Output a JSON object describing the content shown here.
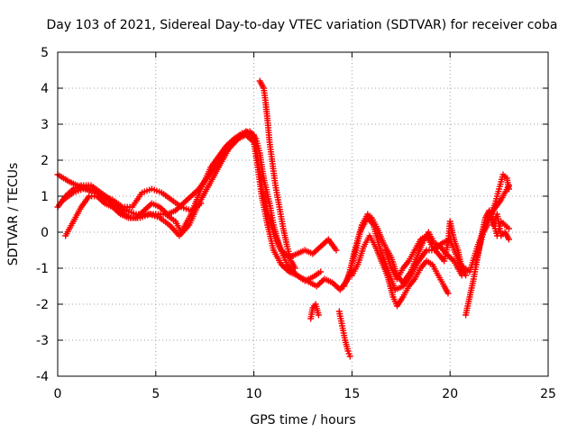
{
  "chart_data": {
    "type": "scatter",
    "title": "Day 103 of 2021, Sidereal Day-to-day VTEC variation (SDTVAR) for receiver coba",
    "xlabel": "GPS time / hours",
    "ylabel": "SDTVAR / TECUs",
    "xlim": [
      0,
      25
    ],
    "ylim": [
      -4,
      5
    ],
    "xticks": [
      "0",
      "5",
      "10",
      "15",
      "20",
      "25"
    ],
    "yticks": [
      "-4",
      "-3",
      "-2",
      "-1",
      "0",
      "1",
      "2",
      "3",
      "4",
      "5"
    ],
    "grid": true,
    "legend": "none",
    "marker": "plus",
    "color": "#ff0000",
    "series": [
      {
        "points": [
          [
            0,
            1.6
          ],
          [
            0.3,
            1.5
          ],
          [
            0.6,
            1.4
          ],
          [
            1.0,
            1.3
          ],
          [
            1.5,
            1.2
          ],
          [
            2.0,
            1.1
          ],
          [
            2.5,
            0.9
          ],
          [
            3.0,
            0.7
          ],
          [
            3.5,
            0.6
          ],
          [
            4.0,
            0.5
          ],
          [
            4.5,
            0.5
          ],
          [
            5.0,
            0.5
          ],
          [
            5.5,
            0.5
          ],
          [
            6.0,
            0.3
          ],
          [
            6.3,
            0.0
          ],
          [
            6.8,
            0.5
          ],
          [
            7.3,
            1.2
          ],
          [
            7.8,
            1.8
          ],
          [
            8.2,
            2.1
          ],
          [
            8.6,
            2.4
          ],
          [
            9.0,
            2.6
          ],
          [
            9.4,
            2.75
          ],
          [
            9.8,
            2.8
          ],
          [
            10.1,
            2.6
          ],
          [
            10.3,
            2.2
          ],
          [
            10.5,
            1.5
          ],
          [
            10.8,
            0.8
          ],
          [
            11.0,
            0.2
          ],
          [
            11.3,
            -0.4
          ],
          [
            11.7,
            -0.9
          ],
          [
            12.2,
            -1.2
          ],
          [
            12.7,
            -1.35
          ],
          [
            13.2,
            -1.5
          ],
          [
            13.6,
            -1.3
          ],
          [
            14.0,
            -1.4
          ],
          [
            14.4,
            -1.6
          ],
          [
            14.8,
            -1.3
          ],
          [
            15.1,
            -0.6
          ],
          [
            15.4,
            0.0
          ],
          [
            15.8,
            0.4
          ],
          [
            16.1,
            0.2
          ],
          [
            16.4,
            -0.4
          ],
          [
            16.8,
            -1.0
          ],
          [
            17.2,
            -1.6
          ],
          [
            17.6,
            -1.5
          ],
          [
            18.0,
            -1.2
          ],
          [
            18.4,
            -0.8
          ],
          [
            18.8,
            -0.5
          ],
          [
            19.2,
            -0.5
          ],
          [
            19.6,
            -0.3
          ],
          [
            20.0,
            -0.2
          ],
          [
            20.5,
            -0.9
          ],
          [
            21.0,
            -1.1
          ],
          [
            21.4,
            -0.4
          ],
          [
            21.8,
            0.2
          ],
          [
            22.2,
            0.6
          ],
          [
            22.6,
            0.9
          ],
          [
            23.0,
            1.3
          ]
        ]
      },
      {
        "points": [
          [
            0,
            0.7
          ],
          [
            0.4,
            1.0
          ],
          [
            0.8,
            1.2
          ],
          [
            1.2,
            1.3
          ],
          [
            1.7,
            1.3
          ],
          [
            2.2,
            1.1
          ],
          [
            2.7,
            0.9
          ],
          [
            3.2,
            0.6
          ],
          [
            3.7,
            0.4
          ],
          [
            4.2,
            0.4
          ],
          [
            4.7,
            0.5
          ],
          [
            5.2,
            0.4
          ],
          [
            5.7,
            0.2
          ],
          [
            6.2,
            -0.1
          ],
          [
            6.7,
            0.2
          ],
          [
            7.2,
            0.8
          ],
          [
            7.7,
            1.3
          ],
          [
            8.2,
            1.8
          ],
          [
            8.7,
            2.3
          ],
          [
            9.2,
            2.6
          ],
          [
            9.6,
            2.8
          ],
          [
            10.0,
            2.7
          ],
          [
            10.2,
            2.0
          ],
          [
            10.4,
            1.2
          ],
          [
            10.7,
            0.6
          ],
          [
            11.0,
            0.0
          ],
          [
            11.4,
            -0.5
          ],
          [
            11.8,
            -0.7
          ],
          [
            12.2,
            -0.6
          ],
          [
            12.6,
            -0.5
          ],
          [
            13.0,
            -0.6
          ],
          [
            13.4,
            -0.4
          ],
          [
            13.8,
            -0.2
          ],
          [
            14.2,
            -0.5
          ]
        ]
      },
      {
        "points": [
          [
            0.4,
            -0.1
          ],
          [
            0.8,
            0.3
          ],
          [
            1.2,
            0.7
          ],
          [
            1.6,
            1.0
          ],
          [
            2.0,
            1.0
          ],
          [
            2.4,
            0.8
          ],
          [
            2.8,
            0.7
          ],
          [
            3.2,
            0.5
          ],
          [
            3.6,
            0.4
          ],
          [
            4.0,
            0.4
          ],
          [
            4.4,
            0.6
          ],
          [
            4.8,
            0.8
          ],
          [
            5.2,
            0.7
          ],
          [
            5.6,
            0.5
          ],
          [
            6.0,
            0.6
          ],
          [
            6.4,
            0.8
          ],
          [
            6.8,
            1.0
          ],
          [
            7.2,
            1.2
          ],
          [
            7.6,
            1.5
          ],
          [
            8.0,
            1.8
          ],
          [
            8.4,
            2.1
          ],
          [
            8.8,
            2.4
          ],
          [
            9.2,
            2.6
          ],
          [
            9.6,
            2.7
          ],
          [
            10.0,
            2.5
          ],
          [
            10.2,
            1.8
          ],
          [
            10.4,
            1.0
          ],
          [
            10.7,
            0.2
          ],
          [
            11.0,
            -0.5
          ],
          [
            11.4,
            -0.9
          ],
          [
            11.8,
            -1.1
          ],
          [
            12.2,
            -1.2
          ],
          [
            12.6,
            -1.35
          ],
          [
            13.0,
            -1.25
          ],
          [
            13.4,
            -1.1
          ]
        ]
      },
      {
        "points": [
          [
            0.3,
            0.9
          ],
          [
            0.8,
            1.1
          ],
          [
            1.3,
            1.2
          ],
          [
            1.8,
            1.15
          ],
          [
            2.3,
            1.0
          ],
          [
            2.8,
            0.9
          ],
          [
            3.3,
            0.7
          ],
          [
            3.8,
            0.7
          ],
          [
            4.3,
            1.1
          ],
          [
            4.8,
            1.2
          ],
          [
            5.3,
            1.1
          ],
          [
            5.8,
            0.9
          ],
          [
            6.3,
            0.7
          ],
          [
            6.8,
            0.6
          ],
          [
            7.3,
            0.8
          ]
        ]
      },
      {
        "points": [
          [
            10.3,
            4.2
          ],
          [
            10.5,
            4.0
          ],
          [
            10.6,
            3.6
          ],
          [
            10.7,
            3.1
          ],
          [
            10.8,
            2.5
          ],
          [
            10.95,
            1.9
          ],
          [
            11.1,
            1.3
          ],
          [
            11.3,
            0.7
          ],
          [
            11.5,
            0.1
          ],
          [
            11.7,
            -0.4
          ],
          [
            11.9,
            -0.8
          ],
          [
            12.1,
            -1.0
          ]
        ]
      },
      {
        "points": [
          [
            12.9,
            -2.4
          ],
          [
            13.0,
            -2.1
          ],
          [
            13.15,
            -2.0
          ],
          [
            13.3,
            -2.3
          ]
        ]
      },
      {
        "points": [
          [
            14.35,
            -2.2
          ],
          [
            14.5,
            -2.6
          ],
          [
            14.65,
            -3.0
          ],
          [
            14.8,
            -3.3
          ],
          [
            14.9,
            -3.45
          ]
        ]
      },
      {
        "points": [
          [
            14.6,
            -1.5
          ],
          [
            14.9,
            -1.1
          ],
          [
            15.2,
            -0.5
          ],
          [
            15.5,
            0.2
          ],
          [
            15.8,
            0.5
          ],
          [
            16.0,
            0.4
          ],
          [
            16.3,
            0.1
          ],
          [
            16.6,
            -0.3
          ],
          [
            17.0,
            -0.7
          ],
          [
            17.3,
            -1.2
          ],
          [
            17.6,
            -1.4
          ],
          [
            18.0,
            -1.1
          ],
          [
            18.3,
            -0.7
          ],
          [
            18.6,
            -0.3
          ],
          [
            18.9,
            0.0
          ],
          [
            19.2,
            -0.3
          ],
          [
            19.5,
            -0.4
          ],
          [
            19.8,
            -0.6
          ],
          [
            20.2,
            -0.8
          ],
          [
            20.6,
            -1.2
          ]
        ]
      },
      {
        "points": [
          [
            15.0,
            -1.2
          ],
          [
            15.3,
            -0.9
          ],
          [
            15.6,
            -0.4
          ],
          [
            15.9,
            -0.1
          ],
          [
            16.2,
            -0.4
          ],
          [
            16.5,
            -0.8
          ],
          [
            16.8,
            -1.2
          ],
          [
            17.1,
            -1.8
          ],
          [
            17.3,
            -2.05
          ],
          [
            17.6,
            -1.8
          ],
          [
            17.9,
            -1.5
          ],
          [
            18.2,
            -1.3
          ],
          [
            18.5,
            -1.0
          ],
          [
            18.8,
            -0.8
          ],
          [
            19.1,
            -0.9
          ],
          [
            19.4,
            -1.2
          ],
          [
            19.7,
            -1.5
          ],
          [
            19.9,
            -1.7
          ]
        ]
      },
      {
        "points": [
          [
            16.7,
            -0.5
          ],
          [
            17.0,
            -1.0
          ],
          [
            17.3,
            -1.3
          ],
          [
            17.6,
            -1.0
          ],
          [
            17.9,
            -0.8
          ],
          [
            18.2,
            -0.5
          ],
          [
            18.5,
            -0.2
          ],
          [
            18.8,
            -0.1
          ],
          [
            19.1,
            -0.4
          ],
          [
            19.4,
            -0.6
          ],
          [
            19.7,
            -0.8
          ],
          [
            19.9,
            -0.3
          ],
          [
            20.0,
            0.3
          ],
          [
            20.2,
            -0.2
          ],
          [
            20.4,
            -0.5
          ],
          [
            20.6,
            -1.0
          ],
          [
            20.8,
            -1.2
          ]
        ]
      },
      {
        "points": [
          [
            20.8,
            -2.3
          ],
          [
            21.0,
            -1.8
          ],
          [
            21.2,
            -1.3
          ],
          [
            21.4,
            -0.7
          ],
          [
            21.6,
            -0.1
          ],
          [
            21.8,
            0.4
          ],
          [
            22.0,
            0.6
          ],
          [
            22.2,
            0.3
          ],
          [
            22.4,
            -0.1
          ],
          [
            22.6,
            0.3
          ],
          [
            22.8,
            0.2
          ],
          [
            23.0,
            0.1
          ]
        ]
      },
      {
        "points": [
          [
            21.3,
            -0.9
          ],
          [
            21.5,
            -0.4
          ],
          [
            21.7,
            0.0
          ],
          [
            21.9,
            0.2
          ],
          [
            22.1,
            0.5
          ],
          [
            22.3,
            0.8
          ],
          [
            22.5,
            1.2
          ],
          [
            22.7,
            1.6
          ],
          [
            22.9,
            1.5
          ],
          [
            23.0,
            1.2
          ]
        ]
      },
      {
        "points": [
          [
            22.2,
            0.2
          ],
          [
            22.4,
            0.5
          ],
          [
            22.6,
            -0.1
          ],
          [
            22.8,
            0.0
          ],
          [
            23.0,
            -0.2
          ]
        ]
      }
    ]
  }
}
